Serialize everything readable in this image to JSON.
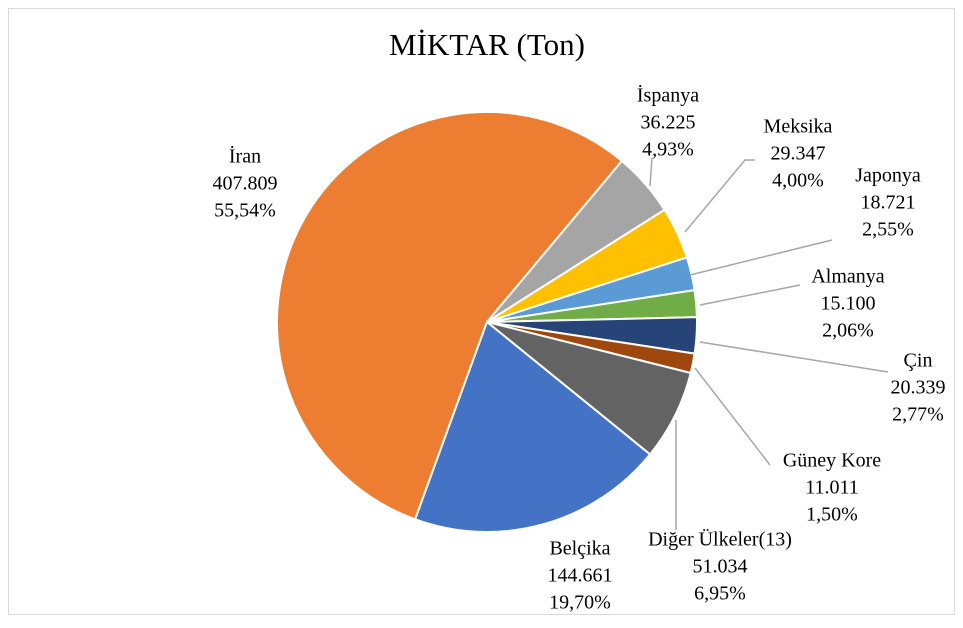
{
  "chart_data": {
    "type": "pie",
    "title": "MİKTAR (Ton)",
    "categories": [
      "İran",
      "İspanya",
      "Meksika",
      "Japonya",
      "Almanya",
      "Çin",
      "Güney Kore",
      "Diğer Ülkeler(13)",
      "Belçika"
    ],
    "values": [
      407809,
      36225,
      29347,
      18721,
      15100,
      20339,
      11011,
      51034,
      144661
    ],
    "value_labels": [
      "407.809",
      "36.225",
      "29.347",
      "18.721",
      "15.100",
      "20.339",
      "11.011",
      "51.034",
      "144.661"
    ],
    "percents": [
      55.54,
      4.93,
      4.0,
      2.55,
      2.06,
      2.77,
      1.5,
      6.95,
      19.7
    ],
    "percent_labels": [
      "55,54%",
      "4,93%",
      "4,00%",
      "2,55%",
      "2,06%",
      "2,77%",
      "1,50%",
      "6,95%",
      "19,70%"
    ],
    "colors": [
      "#ed7d31",
      "#a5a5a5",
      "#ffc000",
      "#5b9bd5",
      "#70ad47",
      "#264478",
      "#9e480e",
      "#636363",
      "#4472c4"
    ]
  }
}
